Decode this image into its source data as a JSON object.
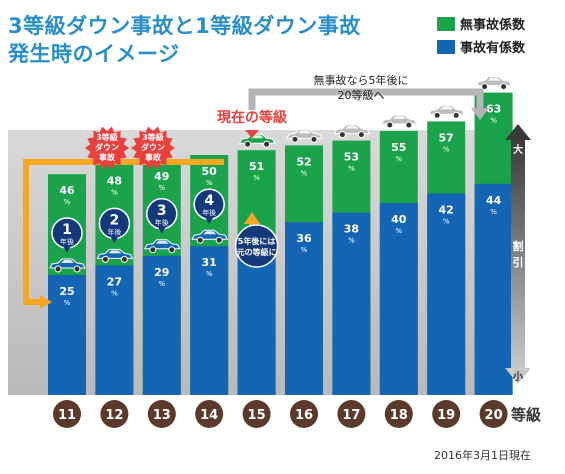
{
  "title_line1": "3等級ダウン事故と1等級ダウン事故",
  "title_line2": "発生時のイメージ",
  "legend": [
    {
      "label": "無事故係数",
      "color": "#1aa34a"
    },
    {
      "label": "事故有係数",
      "color": "#1565b5"
    }
  ],
  "callouts": {
    "no_accident_5yr": [
      "無事故なら5年後に",
      "20等級へ"
    ],
    "current_grade": "現在の等級",
    "three_down": [
      "3等級",
      "ダウン",
      "事故"
    ],
    "back_after_5yr": [
      "5年後には",
      "元の等級に"
    ],
    "year_suffix": "年後"
  },
  "scale": {
    "label": [
      "割",
      "引"
    ],
    "top": "大",
    "bottom": "小"
  },
  "xlabel": "等級",
  "unit": "%",
  "date_note": "2016年3月1日現在",
  "chart_data": {
    "type": "bar",
    "categories": [
      "11",
      "12",
      "13",
      "14",
      "15",
      "16",
      "17",
      "18",
      "19",
      "20"
    ],
    "series": [
      {
        "name": "無事故係数",
        "values": [
          46,
          48,
          49,
          50,
          51,
          52,
          53,
          55,
          57,
          63
        ],
        "color": "#1aa34a"
      },
      {
        "name": "事故有係数",
        "values": [
          25,
          27,
          29,
          31,
          33,
          36,
          38,
          40,
          42,
          44
        ],
        "color": "#1565b5"
      }
    ],
    "xlabel": "等級",
    "ylim": [
      0,
      70
    ],
    "years_after": [
      "1",
      "2",
      "3",
      "4"
    ],
    "legend_position": "top-right"
  }
}
